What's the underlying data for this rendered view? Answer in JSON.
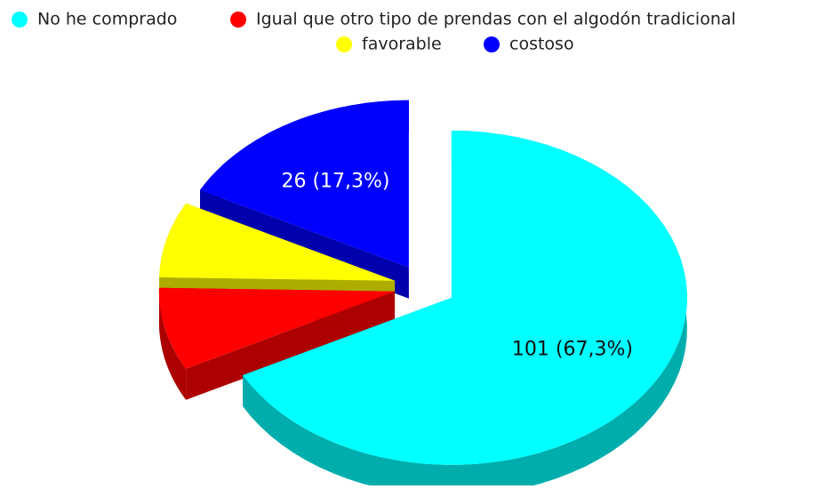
{
  "chart_data": {
    "type": "pie3d",
    "categories": [
      "No he comprado",
      "Igual que otro tipo de prendas con el algodón tradicional",
      "favorable",
      "costoso"
    ],
    "values": [
      101,
      12,
      11,
      26
    ],
    "value_labels": [
      "101 (67,3%)",
      null,
      null,
      "26 (17,3%)"
    ],
    "colors": [
      "#00ffff",
      "#ff0000",
      "#ffff00",
      "#0000ff"
    ],
    "legend": "top"
  }
}
